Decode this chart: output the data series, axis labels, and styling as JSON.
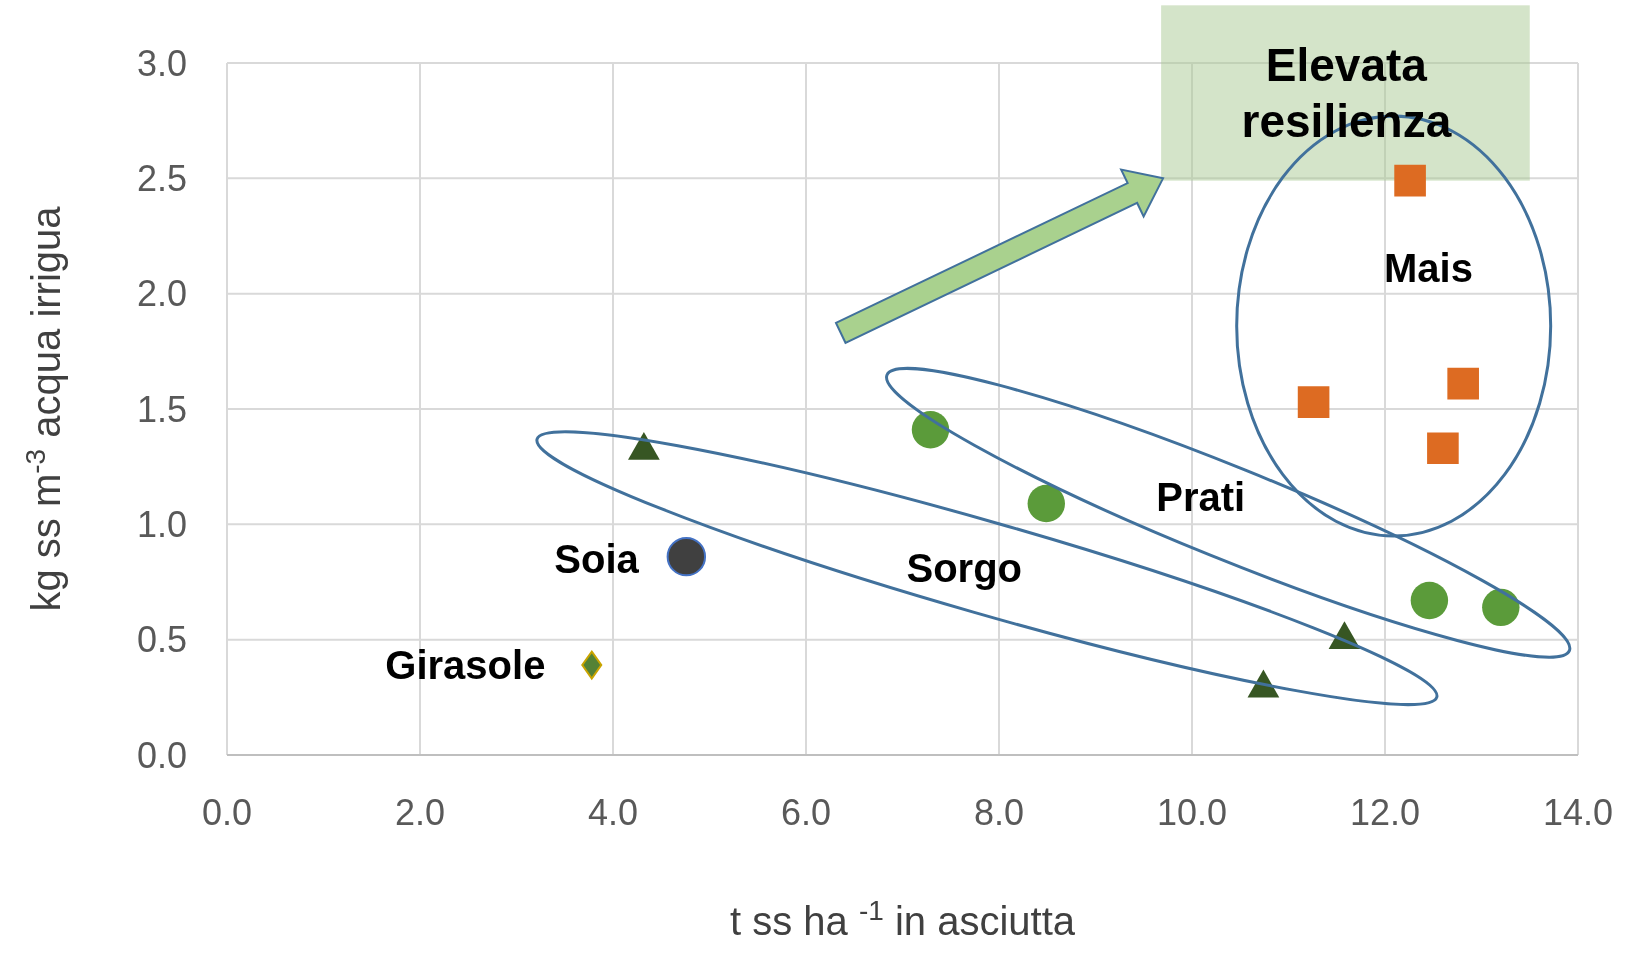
{
  "chart_data": {
    "type": "scatter",
    "xlabel": "t ss ha $^{-1}$ in asciutta",
    "ylabel": "kg ss m$^{-3}$ acqua irrigua",
    "xlim": [
      0,
      14
    ],
    "ylim": [
      0,
      3
    ],
    "xticks": [
      {
        "value": 0,
        "label": "0.0"
      },
      {
        "value": 2,
        "label": "2.0"
      },
      {
        "value": 4,
        "label": "4.0"
      },
      {
        "value": 6,
        "label": "6.0"
      },
      {
        "value": 8,
        "label": "8.0"
      },
      {
        "value": 10,
        "label": "10.0"
      },
      {
        "value": 12,
        "label": "12.0"
      },
      {
        "value": 14,
        "label": "14.0"
      }
    ],
    "yticks": [
      {
        "value": 0,
        "label": "0.0"
      },
      {
        "value": 0.5,
        "label": "0.5"
      },
      {
        "value": 1,
        "label": "1.0"
      },
      {
        "value": 1.5,
        "label": "1.5"
      },
      {
        "value": 2,
        "label": "2.0"
      },
      {
        "value": 2.5,
        "label": "2.5"
      },
      {
        "value": 3,
        "label": "3.0"
      }
    ],
    "grid": true,
    "series": [
      {
        "color": "#548235",
        "marker": "diamond",
        "x": [
          3.78
        ],
        "values": [
          0.39
        ]
      },
      {
        "color": "#404040",
        "marker": "circle",
        "x": [
          4.76
        ],
        "values": [
          0.86
        ]
      },
      {
        "color": "#375623",
        "marker": "triangle",
        "x": [
          4.32,
          10.74,
          11.58
        ],
        "values": [
          1.34,
          0.31,
          0.52
        ]
      },
      {
        "color": "#5b9b3a",
        "marker": "circle",
        "x": [
          7.29,
          8.49,
          12.46,
          13.2
        ],
        "values": [
          1.41,
          1.09,
          0.67,
          0.64
        ]
      },
      {
        "color": "#dd6b22",
        "marker": "square",
        "x": [
          12.26,
          11.26,
          12.81,
          12.6
        ],
        "values": [
          2.49,
          1.53,
          1.61,
          1.33
        ]
      }
    ],
    "annotations": [
      "Girasole",
      "Soia",
      "Sorgo",
      "Prati",
      "Mais",
      "Elevata\nresilienza"
    ]
  }
}
